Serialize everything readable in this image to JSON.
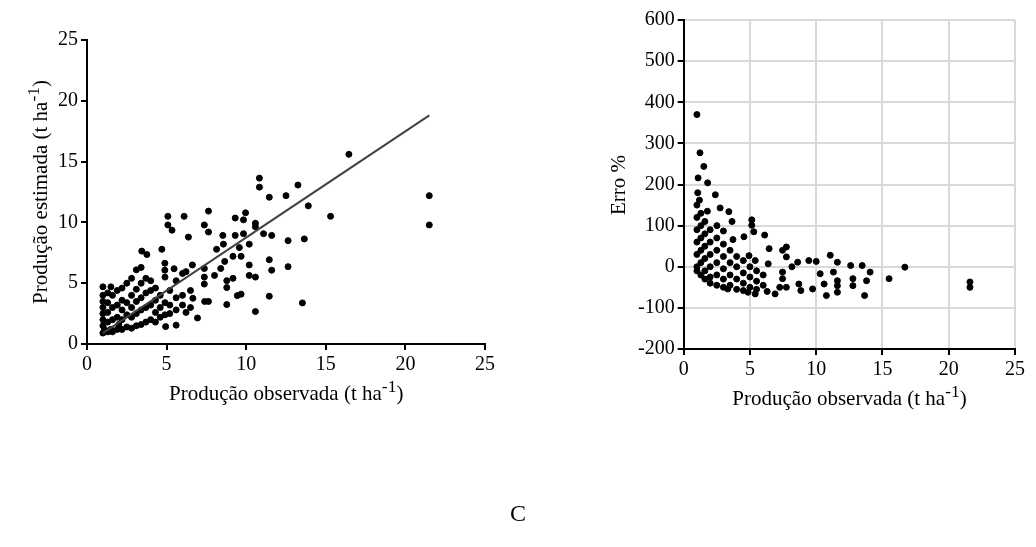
{
  "chart_data": [
    {
      "type": "scatter",
      "xlabel": "Produção observada (t ha$^{-1}$)",
      "ylabel": "Produção estimada (t ha$^{-1}$)",
      "xlim": [
        0,
        25
      ],
      "ylim": [
        0,
        25
      ],
      "xticks": [
        0,
        5,
        10,
        15,
        20,
        25
      ],
      "yticks": [
        0,
        5,
        10,
        15,
        20,
        25
      ],
      "grid": false,
      "legend": false,
      "marker": "circle",
      "annotations": [
        "C"
      ],
      "series": [
        {
          "color": "#000000",
          "x": [
            16.45,
            10.83,
            10.83,
            13.25,
            11.45,
            12.5,
            13.9,
            21.5,
            21.5,
            15.3,
            5.08,
            6.1,
            5.08,
            5.34,
            7.63,
            7.37,
            7.63,
            6.37,
            9.31,
            9.96,
            9.83,
            10.58,
            10.58,
            11.09,
            11.6,
            12.63,
            13.65,
            8.53,
            9.31,
            9.83,
            10.19,
            8.57,
            8.14,
            9.57,
            9.17,
            9.68,
            8.65,
            10.19,
            11.45,
            11.6,
            12.63,
            10.19,
            10.58,
            11.45,
            13.53,
            10.58,
            8.78,
            8.78,
            8.78,
            9.17,
            9.44,
            9.68,
            7.37,
            7.37,
            8.01,
            8.4,
            7.37,
            6.62,
            4.7,
            3.44,
            3.76,
            4.89,
            4.89,
            5.47,
            6.22,
            7.39,
            6.94,
            7.63,
            6.22,
            5.6,
            4.94,
            6.65,
            1.0,
            1.0,
            1.0,
            1.0,
            1.0,
            1.0,
            1.0,
            1.0,
            1.3,
            1.3,
            1.3,
            1.3,
            1.3,
            1.5,
            1.6,
            1.6,
            1.6,
            1.6,
            1.9,
            1.9,
            1.9,
            1.9,
            2.2,
            2.2,
            2.2,
            2.2,
            2.2,
            2.5,
            2.5,
            2.5,
            2.5,
            2.8,
            2.8,
            2.8,
            2.8,
            2.8,
            3.1,
            3.1,
            3.1,
            3.1,
            3.1,
            3.4,
            3.4,
            3.4,
            3.4,
            3.4,
            3.7,
            3.7,
            3.7,
            3.7,
            4.0,
            4.0,
            4.0,
            4.0,
            4.3,
            4.3,
            4.3,
            4.3,
            4.6,
            4.6,
            4.6,
            4.9,
            4.9,
            4.9,
            5.2,
            5.2,
            5.2,
            5.6,
            5.6,
            5.6,
            6.0,
            6.0,
            6.0,
            6.5,
            6.5,
            1.5,
            1.1,
            2.0
          ],
          "values": [
            15.6,
            13.64,
            12.9,
            13.07,
            12.07,
            12.2,
            11.36,
            12.2,
            9.79,
            10.5,
            10.5,
            10.5,
            9.79,
            9.36,
            10.93,
            9.79,
            9.21,
            8.79,
            10.36,
            10.79,
            10.21,
            9.93,
            9.64,
            9.07,
            8.93,
            8.5,
            8.64,
            8.93,
            8.93,
            9.07,
            8.21,
            8.21,
            7.79,
            7.93,
            7.21,
            7.21,
            6.79,
            6.5,
            6.93,
            6.07,
            6.36,
            5.64,
            5.5,
            3.93,
            3.38,
            2.67,
            3.24,
            4.64,
            5.21,
            5.4,
            3.98,
            4.1,
            5.5,
            4.93,
            5.64,
            6.21,
            6.21,
            6.5,
            7.79,
            7.64,
            7.36,
            6.64,
            6.07,
            6.19,
            5.95,
            3.5,
            2.14,
            3.5,
            2.6,
            1.55,
            1.43,
            3.76,
            0.9,
            1.5,
            2.0,
            2.5,
            3.0,
            3.5,
            4.0,
            4.7,
            1.0,
            1.8,
            2.6,
            3.4,
            4.2,
            4.7,
            1.0,
            2.0,
            3.0,
            4.0,
            1.2,
            2.2,
            3.2,
            4.4,
            1.2,
            2.0,
            2.8,
            3.6,
            4.6,
            1.4,
            2.4,
            3.4,
            5.0,
            1.3,
            2.2,
            3.0,
            4.0,
            5.4,
            1.5,
            2.5,
            3.5,
            4.5,
            6.1,
            1.6,
            2.8,
            3.8,
            5.0,
            6.3,
            1.8,
            3.0,
            4.2,
            5.4,
            2.0,
            3.2,
            4.4,
            5.2,
            1.8,
            2.6,
            3.6,
            4.6,
            2.2,
            3.0,
            4.0,
            2.4,
            3.4,
            5.5,
            2.5,
            3.2,
            4.4,
            2.8,
            3.8,
            5.2,
            3.2,
            4.0,
            5.8,
            3.0,
            4.4,
            1.2,
            1.2,
            1.6
          ]
        },
        {
          "type": "line",
          "color": "#404040",
          "marker": "none",
          "x": [
            1.0,
            21.5
          ],
          "values": [
            0.9,
            18.8
          ]
        }
      ]
    },
    {
      "type": "scatter",
      "xlabel": "Produção observada (t ha$^{-1}$)",
      "ylabel": "Erro %",
      "xlim": [
        0,
        25
      ],
      "ylim": [
        -200,
        600
      ],
      "xticks": [
        0,
        5,
        10,
        15,
        20,
        25
      ],
      "yticks": [
        -200,
        -100,
        0,
        100,
        200,
        300,
        400,
        500,
        600
      ],
      "grid": true,
      "legend": false,
      "marker": "circle",
      "series": [
        {
          "color": "#000000",
          "x": [
            1.0,
            1.23,
            1.52,
            1.09,
            1.81,
            2.39,
            2.75,
            3.41,
            3.65,
            5.14,
            5.14,
            5.29,
            6.11,
            4.55,
            6.45,
            7.46,
            7.75,
            7.75,
            11.06,
            11.6,
            12.6,
            13.47,
            14.07,
            16.69,
            15.5,
            21.6,
            21.6,
            13.65,
            10.77,
            11.6,
            12.77,
            12.77,
            13.8,
            11.6,
            11.6,
            11.3,
            10.6,
            10.3,
            10.0,
            9.44,
            9.73,
            8.84,
            8.69,
            8.6,
            8.17,
            7.46,
            7.46,
            7.75,
            7.25,
            6.9,
            5.4,
            4.86,
            3.33,
            6.38,
            4.93,
            5.4,
            3.72,
            3.0,
            2.51,
            1.79,
            1.19,
            1.06,
            1.0,
            1.0,
            1.0,
            1.0,
            1.0,
            1.0,
            1.0,
            1.3,
            1.3,
            1.3,
            1.3,
            1.3,
            1.3,
            1.6,
            1.6,
            1.6,
            1.6,
            1.6,
            1.6,
            2.0,
            2.0,
            2.0,
            2.0,
            2.0,
            2.0,
            2.5,
            2.5,
            2.5,
            2.5,
            2.5,
            3.0,
            3.0,
            3.0,
            3.0,
            3.0,
            3.5,
            3.5,
            3.5,
            3.5,
            4.0,
            4.0,
            4.0,
            4.0,
            4.5,
            4.5,
            4.5,
            4.5,
            5.0,
            5.0,
            5.0,
            5.5,
            5.5,
            5.5,
            6.0,
            6.0,
            6.3
          ],
          "values": [
            370,
            277,
            244,
            216,
            204,
            175,
            143,
            134,
            110,
            114,
            101,
            85,
            77,
            73,
            44,
            40,
            48,
            24,
            28,
            11,
            3,
            3,
            -13,
            -1,
            -29,
            -37,
            -50,
            -70,
            -70,
            -62,
            -46,
            -29,
            -34,
            -46,
            -34,
            -13,
            -42,
            -17,
            13,
            15,
            -54,
            -58,
            -42,
            11,
            0,
            -13,
            -29,
            -50,
            -50,
            -66,
            -66,
            -62,
            -54,
            7,
            27,
            15,
            66,
            87,
            100,
            135,
            162,
            180,
            150,
            120,
            90,
            60,
            30,
            0,
            -10,
            130,
            100,
            70,
            40,
            10,
            -20,
            110,
            80,
            50,
            20,
            -10,
            -30,
            90,
            60,
            30,
            0,
            -25,
            -40,
            70,
            40,
            10,
            -20,
            -45,
            55,
            25,
            -5,
            -30,
            -50,
            40,
            10,
            -20,
            -45,
            25,
            0,
            -30,
            -55,
            15,
            -15,
            -40,
            -58,
            0,
            -25,
            -50,
            -10,
            -35,
            -55,
            -20,
            -45,
            -60
          ]
        }
      ]
    }
  ]
}
